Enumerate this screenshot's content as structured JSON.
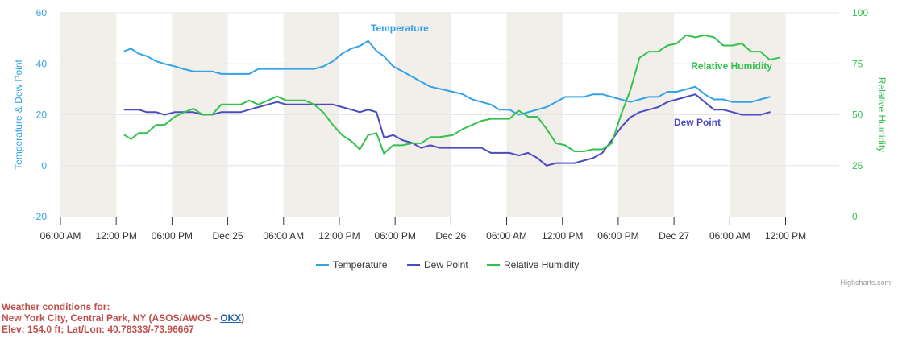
{
  "chart_data": {
    "type": "line",
    "x_tick_labels": [
      "06:00 AM",
      "12:00 PM",
      "06:00 PM",
      "Dec 25",
      "06:00 AM",
      "12:00 PM",
      "06:00 PM",
      "Dec 26",
      "06:00 AM",
      "12:00 PM",
      "06:00 PM",
      "Dec 27",
      "06:00 AM",
      "12:00 PM"
    ],
    "x_tick_hours": [
      0,
      6,
      12,
      18,
      24,
      30,
      36,
      42,
      48,
      54,
      60,
      66,
      72,
      78
    ],
    "x_range_hours": [
      0,
      84
    ],
    "x_note": "hours after 06:00 AM Dec 24",
    "y_left": {
      "title": "Temperature & Dew Point",
      "range": [
        -20,
        60
      ],
      "ticks": [
        -20,
        0,
        20,
        40,
        60
      ],
      "color": "#33A3E8"
    },
    "y_right": {
      "title": "Relative Humidity",
      "range": [
        0,
        100
      ],
      "ticks": [
        0,
        25,
        50,
        75,
        100
      ],
      "color": "#33C24E"
    },
    "night_bands_hours": [
      [
        0,
        6
      ],
      [
        12,
        18
      ],
      [
        24,
        30
      ],
      [
        36,
        42
      ],
      [
        48,
        54
      ],
      [
        60,
        66
      ],
      [
        72,
        78
      ]
    ],
    "series": [
      {
        "name": "Temperature",
        "axis": "left",
        "color": "#33A3E8",
        "label": "Temperature",
        "label_at": [
          36.5,
          54
        ],
        "points": [
          [
            6.9,
            45
          ],
          [
            7.6,
            46
          ],
          [
            8.4,
            44
          ],
          [
            9.3,
            43
          ],
          [
            10.3,
            41
          ],
          [
            11.2,
            40
          ],
          [
            12.3,
            39
          ],
          [
            13.2,
            38
          ],
          [
            14.3,
            37
          ],
          [
            15.3,
            37
          ],
          [
            16.3,
            37
          ],
          [
            17.3,
            36
          ],
          [
            18.3,
            36
          ],
          [
            19.4,
            36
          ],
          [
            20.3,
            36
          ],
          [
            21.3,
            38
          ],
          [
            22.3,
            38
          ],
          [
            23.3,
            38
          ],
          [
            24.3,
            38
          ],
          [
            25.4,
            38
          ],
          [
            26.3,
            38
          ],
          [
            27.3,
            38
          ],
          [
            28.3,
            39
          ],
          [
            29.3,
            41
          ],
          [
            30.3,
            44
          ],
          [
            31.3,
            46
          ],
          [
            32.2,
            47
          ],
          [
            33.1,
            49
          ],
          [
            34,
            45
          ],
          [
            34.8,
            43
          ],
          [
            35.8,
            39
          ],
          [
            37.8,
            35
          ],
          [
            39.8,
            31
          ],
          [
            42.2,
            29
          ],
          [
            43.3,
            28
          ],
          [
            44.3,
            26
          ],
          [
            45.3,
            25
          ],
          [
            46.3,
            24
          ],
          [
            47.2,
            22
          ],
          [
            48.3,
            22
          ],
          [
            49.3,
            20
          ],
          [
            51.3,
            22
          ],
          [
            52.3,
            23
          ],
          [
            53.3,
            25
          ],
          [
            54.3,
            27
          ],
          [
            55.3,
            27
          ],
          [
            56.3,
            27
          ],
          [
            57.3,
            28
          ],
          [
            58.3,
            28
          ],
          [
            59.3,
            27
          ],
          [
            60.3,
            26
          ],
          [
            61.3,
            25
          ],
          [
            62.3,
            26
          ],
          [
            63.3,
            27
          ],
          [
            64.3,
            27
          ],
          [
            65.3,
            29
          ],
          [
            66.3,
            29
          ],
          [
            67.3,
            30
          ],
          [
            68.3,
            31
          ],
          [
            69.3,
            28
          ],
          [
            70.3,
            26
          ],
          [
            71.3,
            26
          ],
          [
            72.3,
            25
          ],
          [
            73.3,
            25
          ],
          [
            74.3,
            25
          ],
          [
            75.3,
            26
          ],
          [
            76.3,
            27
          ]
        ]
      },
      {
        "name": "Dew Point",
        "axis": "left",
        "color": "#4B4BC2",
        "label": "Dew Point",
        "label_at": [
          68.5,
          17
        ],
        "points": [
          [
            6.9,
            22
          ],
          [
            7.6,
            22
          ],
          [
            8.4,
            22
          ],
          [
            9.3,
            21
          ],
          [
            10.3,
            21
          ],
          [
            11.2,
            20
          ],
          [
            12.3,
            21
          ],
          [
            13.2,
            21
          ],
          [
            14.3,
            21
          ],
          [
            15.3,
            20
          ],
          [
            16.3,
            20
          ],
          [
            17.3,
            21
          ],
          [
            18.3,
            21
          ],
          [
            19.4,
            21
          ],
          [
            20.3,
            22
          ],
          [
            21.3,
            23
          ],
          [
            22.3,
            24
          ],
          [
            23.3,
            25
          ],
          [
            24.3,
            24
          ],
          [
            25.4,
            24
          ],
          [
            26.3,
            24
          ],
          [
            27.3,
            24
          ],
          [
            28.3,
            24
          ],
          [
            29.3,
            24
          ],
          [
            30.3,
            23
          ],
          [
            31.3,
            22
          ],
          [
            32.2,
            21
          ],
          [
            33.1,
            22
          ],
          [
            34,
            21
          ],
          [
            34.8,
            11
          ],
          [
            35.8,
            12
          ],
          [
            36.8,
            10
          ],
          [
            37.8,
            9
          ],
          [
            38.8,
            7
          ],
          [
            39.8,
            8
          ],
          [
            40.8,
            7
          ],
          [
            42.2,
            7
          ],
          [
            43.3,
            7
          ],
          [
            44.3,
            7
          ],
          [
            45.3,
            7
          ],
          [
            46.3,
            5
          ],
          [
            47.2,
            5
          ],
          [
            48.3,
            5
          ],
          [
            49.3,
            4
          ],
          [
            50.3,
            5
          ],
          [
            51.3,
            3
          ],
          [
            52.3,
            0
          ],
          [
            53.3,
            1
          ],
          [
            54.3,
            1
          ],
          [
            55.3,
            1
          ],
          [
            56.3,
            2
          ],
          [
            57.3,
            3
          ],
          [
            58.3,
            5
          ],
          [
            59.3,
            10
          ],
          [
            60.3,
            15
          ],
          [
            61.3,
            19
          ],
          [
            62.3,
            21
          ],
          [
            63.3,
            22
          ],
          [
            64.3,
            23
          ],
          [
            65.3,
            25
          ],
          [
            66.3,
            26
          ],
          [
            67.3,
            27
          ],
          [
            68.3,
            28
          ],
          [
            69.3,
            25
          ],
          [
            70.3,
            22
          ],
          [
            71.3,
            22
          ],
          [
            72.3,
            21
          ],
          [
            73.3,
            20
          ],
          [
            74.3,
            20
          ],
          [
            75.3,
            20
          ],
          [
            76.3,
            21
          ]
        ]
      },
      {
        "name": "Relative Humidity",
        "axis": "right",
        "color": "#33C24E",
        "label": "Relative Humidity",
        "label_at": [
          72.2,
          74
        ],
        "points": [
          [
            6.9,
            40
          ],
          [
            7.6,
            38
          ],
          [
            8.4,
            41
          ],
          [
            9.3,
            41
          ],
          [
            10.3,
            45
          ],
          [
            11.2,
            45
          ],
          [
            12.3,
            49
          ],
          [
            13.2,
            51
          ],
          [
            14.3,
            53
          ],
          [
            15.3,
            50
          ],
          [
            16.3,
            50
          ],
          [
            17.3,
            55
          ],
          [
            18.3,
            55
          ],
          [
            19.4,
            55
          ],
          [
            20.3,
            57
          ],
          [
            21.3,
            55
          ],
          [
            22.3,
            57
          ],
          [
            23.3,
            59
          ],
          [
            24.3,
            57
          ],
          [
            25.4,
            57
          ],
          [
            26.3,
            57
          ],
          [
            27.3,
            55
          ],
          [
            28.3,
            51
          ],
          [
            29.3,
            45
          ],
          [
            30.3,
            40
          ],
          [
            31.3,
            37
          ],
          [
            32.2,
            33
          ],
          [
            33.1,
            40
          ],
          [
            34,
            41
          ],
          [
            34.8,
            31
          ],
          [
            35.8,
            35
          ],
          [
            36.8,
            35
          ],
          [
            37.8,
            36
          ],
          [
            38.8,
            36
          ],
          [
            39.8,
            39
          ],
          [
            40.8,
            39
          ],
          [
            42.2,
            40
          ],
          [
            43.3,
            43
          ],
          [
            44.3,
            45
          ],
          [
            45.3,
            47
          ],
          [
            46.3,
            48
          ],
          [
            47.2,
            48
          ],
          [
            48.3,
            48
          ],
          [
            49.3,
            52
          ],
          [
            50.3,
            49
          ],
          [
            51.3,
            49
          ],
          [
            52.3,
            43
          ],
          [
            53.3,
            36
          ],
          [
            54.3,
            35
          ],
          [
            55.3,
            32
          ],
          [
            56.3,
            32
          ],
          [
            57.3,
            33
          ],
          [
            58.3,
            33
          ],
          [
            59.3,
            36
          ],
          [
            60.3,
            50
          ],
          [
            61.3,
            62
          ],
          [
            62.3,
            78
          ],
          [
            63.3,
            81
          ],
          [
            64.3,
            81
          ],
          [
            65.3,
            84
          ],
          [
            66.3,
            85
          ],
          [
            67.3,
            89
          ],
          [
            68.3,
            88
          ],
          [
            69.3,
            89
          ],
          [
            70.3,
            88
          ],
          [
            71.3,
            84
          ],
          [
            72.3,
            84
          ],
          [
            73.3,
            85
          ],
          [
            74.3,
            81
          ],
          [
            75.3,
            81
          ],
          [
            76.3,
            77
          ],
          [
            77.3,
            78
          ]
        ]
      }
    ]
  },
  "legend": {
    "items": [
      {
        "name": "Temperature",
        "color": "#33A3E8"
      },
      {
        "name": "Dew Point",
        "color": "#4B4BC2"
      },
      {
        "name": "Relative Humidity",
        "color": "#33C24E"
      }
    ]
  },
  "credits": "Highcharts.com",
  "station": {
    "heading": "Weather conditions for:",
    "line2_prefix": "New York City, Central Park, NY (ASOS/AWOS - ",
    "link": "OKX",
    "line2_suffix": ")",
    "line3": "Elev: 154.0 ft; Lat/Lon: 40.78333/-73.96667"
  }
}
